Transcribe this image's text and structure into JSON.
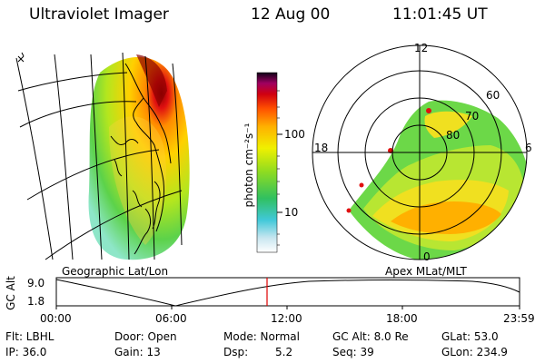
{
  "header": {
    "instrument": "Ultraviolet Imager",
    "date": "12 Aug 00",
    "time": "11:01:45 UT"
  },
  "colorbar": {
    "unit_label": "photon cm⁻²s⁻¹",
    "tick_100": "100",
    "tick_10": "10"
  },
  "polar_plot": {
    "labels_mlt": [
      "12",
      "18",
      "6",
      "0"
    ],
    "labels_mlat": [
      "60",
      "70",
      "80"
    ]
  },
  "panel_labels": {
    "geographic": "Geographic Lat/Lon",
    "apex": "Apex MLat/MLT"
  },
  "altitude_plot": {
    "ylabel": "GC Alt",
    "y_ticks": [
      "9.0",
      "1.8"
    ],
    "x_ticks": [
      "00:00",
      "06:00",
      "12:00",
      "18:00",
      "23:59"
    ]
  },
  "info": {
    "flt": "Flt: LBHL",
    "ip": "IP: 36.0",
    "door": "Door: Open",
    "gain": "Gain: 13",
    "mode": "Mode: Normal",
    "dsp_label": "Dsp:",
    "dsp_value": "5.2",
    "gc_alt": "GC Alt: 8.0 Re",
    "seq": "Seq: 39",
    "glat": "GLat:  53.0",
    "glon": "GLon: 234.9"
  },
  "colors": {
    "current_time_marker": "#e00000"
  }
}
